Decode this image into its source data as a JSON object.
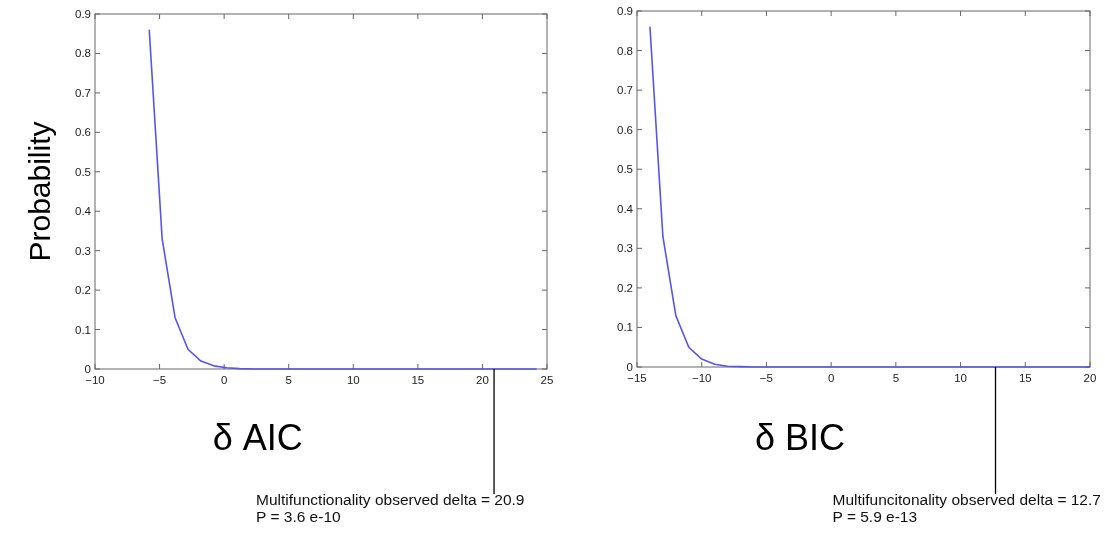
{
  "chart_data": [
    {
      "type": "line",
      "xlabel": "δ AIC",
      "ylabel": "Probability",
      "xlim": [
        -10,
        25
      ],
      "xticks": [
        -10,
        -5,
        0,
        5,
        10,
        15,
        20,
        25
      ],
      "ylim": [
        0,
        0.9
      ],
      "yticks": [
        0,
        0.1,
        0.2,
        0.3,
        0.4,
        0.5,
        0.6,
        0.7,
        0.8,
        0.9
      ],
      "grid": false,
      "marker": "none",
      "line_style": "solid",
      "series": [
        {
          "color": "#5555ee",
          "x": [
            -5.8,
            -4.8,
            -3.8,
            -2.8,
            -1.8,
            -0.8,
            0.2,
            1.2,
            2.2,
            24.2
          ],
          "values": [
            0.86,
            0.33,
            0.13,
            0.05,
            0.02,
            0.008,
            0.003,
            0.001,
            0,
            0
          ]
        }
      ],
      "annotations": [
        {
          "text": "Multifunctionality observed delta = 20.9\nP = 3.6 e-10",
          "x": 20.9,
          "y": 0
        }
      ]
    },
    {
      "type": "line",
      "xlabel": "δ BIC",
      "xlim": [
        -15,
        20
      ],
      "xticks": [
        -15,
        -10,
        -5,
        0,
        5,
        10,
        15,
        20
      ],
      "ylim": [
        0,
        0.9
      ],
      "yticks": [
        0,
        0.1,
        0.2,
        0.3,
        0.4,
        0.5,
        0.6,
        0.7,
        0.8,
        0.9
      ],
      "grid": false,
      "marker": "none",
      "line_style": "solid",
      "series": [
        {
          "color": "#5555ee",
          "x": [
            -14,
            -13,
            -12,
            -11,
            -10,
            -9,
            -8,
            -7,
            -6,
            20
          ],
          "values": [
            0.86,
            0.33,
            0.13,
            0.05,
            0.02,
            0.007,
            0.002,
            0.001,
            0,
            0
          ]
        }
      ],
      "annotations": [
        {
          "text": "Multifuncitonality observed delta = 12.7\nP = 5.9 e-13",
          "x": 12.7,
          "y": 0
        }
      ]
    }
  ]
}
